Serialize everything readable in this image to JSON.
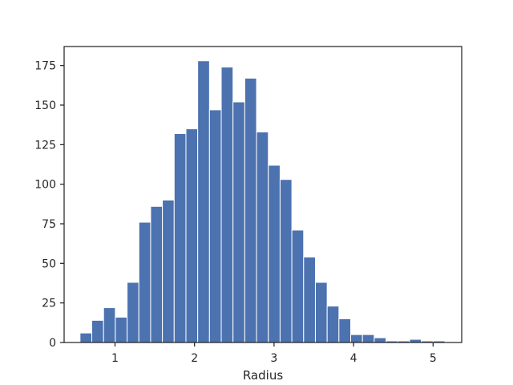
{
  "chart_data": {
    "type": "bar",
    "title": "",
    "xlabel": "Radius",
    "ylabel": "",
    "xlim": [
      0.36,
      5.36
    ],
    "ylim": [
      0,
      187
    ],
    "grid": false,
    "bar_color": "#4c72b0",
    "edge_color": "#ffffff",
    "axis_color": "#262626",
    "bin_width": 0.148,
    "bins_left": [
      0.56,
      0.708,
      0.856,
      1.004,
      1.152,
      1.3,
      1.448,
      1.596,
      1.744,
      1.892,
      2.04,
      2.188,
      2.336,
      2.484,
      2.632,
      2.78,
      2.928,
      3.076,
      3.224,
      3.372,
      3.52,
      3.668,
      3.816,
      3.964,
      4.112,
      4.26,
      4.408,
      4.556,
      4.704,
      4.852,
      5.0
    ],
    "values": [
      6,
      14,
      22,
      16,
      38,
      76,
      86,
      90,
      132,
      135,
      178,
      147,
      174,
      152,
      167,
      133,
      112,
      103,
      71,
      54,
      38,
      23,
      15,
      5,
      5,
      3,
      1,
      1,
      2,
      1,
      1
    ],
    "x_ticks": [
      1,
      2,
      3,
      4,
      5
    ],
    "x_tick_labels": [
      "1",
      "2",
      "3",
      "4",
      "5"
    ],
    "y_ticks": [
      0,
      25,
      50,
      75,
      100,
      125,
      150,
      175
    ],
    "y_tick_labels": [
      "0",
      "25",
      "50",
      "75",
      "100",
      "125",
      "150",
      "175"
    ]
  }
}
